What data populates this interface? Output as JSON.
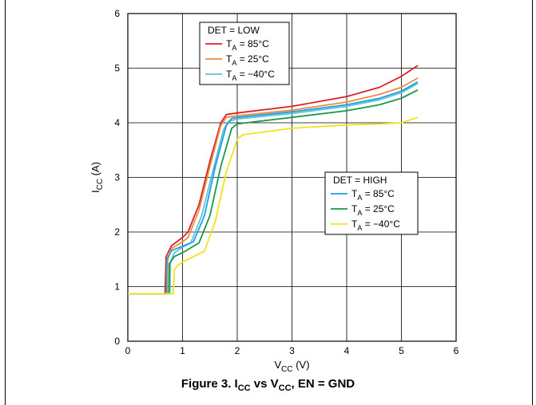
{
  "caption": {
    "prefix": "Figure 3. I",
    "sub1": "CC",
    "mid": " vs V",
    "sub2": "CC",
    "suffix": ", EN = GND"
  },
  "colors": {
    "red": "#d9232b",
    "orange": "#f08a3a",
    "cyan": "#5fc3d6",
    "blue": "#1f9ee0",
    "green": "#179a4b",
    "yellow": "#f2e21d"
  },
  "chart_data": {
    "type": "line",
    "title": "",
    "xlabel": {
      "main": "V",
      "sub": "CC",
      "unit": " (V)"
    },
    "ylabel": {
      "main": "I",
      "sub": "CC",
      "unit": " (A)"
    },
    "xlim": [
      0,
      6
    ],
    "ylim": [
      0,
      6
    ],
    "xticks": [
      0,
      1,
      2,
      3,
      4,
      5,
      6
    ],
    "yticks": [
      0,
      1,
      2,
      3,
      4,
      5,
      6
    ],
    "grid": true,
    "legend_groups": [
      {
        "title": "DET = LOW",
        "placement": "top-left",
        "entries": [
          {
            "series": 0,
            "prefix": "T",
            "sub": "A",
            "suffix": " = 85°C"
          },
          {
            "series": 1,
            "prefix": "T",
            "sub": "A",
            "suffix": " = 25°C"
          },
          {
            "series": 2,
            "prefix": "T",
            "sub": "A",
            "suffix": " = −40°C"
          }
        ]
      },
      {
        "title": "DET = HIGH",
        "placement": "center-right",
        "entries": [
          {
            "series": 3,
            "prefix": "T",
            "sub": "A",
            "suffix": " = 85°C"
          },
          {
            "series": 4,
            "prefix": "T",
            "sub": "A",
            "suffix": " = 25°C"
          },
          {
            "series": 5,
            "prefix": "T",
            "sub": "A",
            "suffix": " = −40°C"
          }
        ]
      }
    ],
    "series": [
      {
        "name": "DET = LOW, TA = 85°C",
        "color": "#d9232b",
        "points": [
          [
            0,
            0.87
          ],
          [
            0.68,
            0.87
          ],
          [
            0.7,
            1.55
          ],
          [
            0.8,
            1.75
          ],
          [
            1.0,
            1.9
          ],
          [
            1.1,
            2.0
          ],
          [
            1.3,
            2.5
          ],
          [
            1.5,
            3.3
          ],
          [
            1.7,
            4.0
          ],
          [
            1.8,
            4.15
          ],
          [
            2.0,
            4.18
          ],
          [
            3.0,
            4.3
          ],
          [
            4.0,
            4.48
          ],
          [
            4.6,
            4.65
          ],
          [
            5.0,
            4.85
          ],
          [
            5.3,
            5.05
          ]
        ]
      },
      {
        "name": "DET = LOW, TA = 25°C",
        "color": "#f08a3a",
        "points": [
          [
            0,
            0.87
          ],
          [
            0.72,
            0.87
          ],
          [
            0.73,
            1.5
          ],
          [
            0.8,
            1.7
          ],
          [
            1.0,
            1.82
          ],
          [
            1.1,
            1.9
          ],
          [
            1.3,
            2.4
          ],
          [
            1.5,
            3.2
          ],
          [
            1.7,
            3.95
          ],
          [
            1.8,
            4.1
          ],
          [
            2.0,
            4.13
          ],
          [
            3.0,
            4.23
          ],
          [
            4.0,
            4.38
          ],
          [
            4.6,
            4.52
          ],
          [
            5.0,
            4.65
          ],
          [
            5.3,
            4.82
          ]
        ]
      },
      {
        "name": "DET = LOW, TA = −40°C",
        "color": "#5fc3d6",
        "points": [
          [
            0,
            0.87
          ],
          [
            0.77,
            0.87
          ],
          [
            0.78,
            1.45
          ],
          [
            0.85,
            1.62
          ],
          [
            1.0,
            1.72
          ],
          [
            1.15,
            1.8
          ],
          [
            1.35,
            2.3
          ],
          [
            1.55,
            3.1
          ],
          [
            1.75,
            3.88
          ],
          [
            1.85,
            4.03
          ],
          [
            2.0,
            4.07
          ],
          [
            3.0,
            4.17
          ],
          [
            4.0,
            4.3
          ],
          [
            4.6,
            4.42
          ],
          [
            5.0,
            4.55
          ],
          [
            5.3,
            4.72
          ]
        ]
      },
      {
        "name": "DET = HIGH, TA = 85°C",
        "color": "#1f9ee0",
        "points": [
          [
            0,
            0.87
          ],
          [
            0.7,
            0.87
          ],
          [
            0.71,
            1.5
          ],
          [
            0.8,
            1.66
          ],
          [
            1.0,
            1.74
          ],
          [
            1.2,
            1.82
          ],
          [
            1.4,
            2.3
          ],
          [
            1.6,
            3.2
          ],
          [
            1.8,
            3.95
          ],
          [
            1.9,
            4.08
          ],
          [
            2.0,
            4.1
          ],
          [
            3.0,
            4.2
          ],
          [
            4.0,
            4.33
          ],
          [
            4.6,
            4.45
          ],
          [
            5.0,
            4.58
          ],
          [
            5.3,
            4.75
          ]
        ]
      },
      {
        "name": "DET = HIGH, TA = 25°C",
        "color": "#179a4b",
        "points": [
          [
            0,
            0.87
          ],
          [
            0.75,
            0.87
          ],
          [
            0.76,
            1.42
          ],
          [
            0.85,
            1.55
          ],
          [
            1.0,
            1.62
          ],
          [
            1.3,
            1.8
          ],
          [
            1.5,
            2.3
          ],
          [
            1.7,
            3.2
          ],
          [
            1.9,
            3.9
          ],
          [
            2.0,
            3.98
          ],
          [
            3.0,
            4.1
          ],
          [
            4.0,
            4.22
          ],
          [
            4.6,
            4.33
          ],
          [
            5.0,
            4.45
          ],
          [
            5.3,
            4.6
          ]
        ]
      },
      {
        "name": "DET = HIGH, TA = −40°C",
        "color": "#f2e21d",
        "points": [
          [
            0,
            0.87
          ],
          [
            0.83,
            0.87
          ],
          [
            0.85,
            1.3
          ],
          [
            0.9,
            1.38
          ],
          [
            1.0,
            1.45
          ],
          [
            1.4,
            1.65
          ],
          [
            1.6,
            2.2
          ],
          [
            1.8,
            3.1
          ],
          [
            2.0,
            3.7
          ],
          [
            2.1,
            3.78
          ],
          [
            3.0,
            3.9
          ],
          [
            4.0,
            3.96
          ],
          [
            4.6,
            3.98
          ],
          [
            5.0,
            4.0
          ],
          [
            5.3,
            4.1
          ]
        ]
      }
    ]
  }
}
